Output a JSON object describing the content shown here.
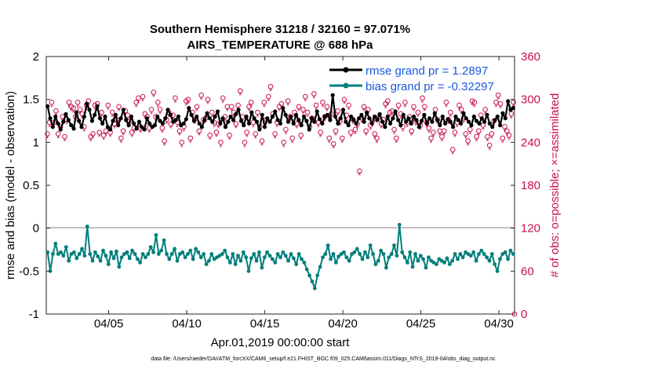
{
  "chart_data": {
    "type": "line",
    "title_line1": "Southern Hemisphere 31218 / 32160 = 97.071%",
    "title_line2": "AIRS_TEMPERATURE @ 688 hPa",
    "xlabel": "Apr.01,2019 00:00:00 start",
    "ylabel_left": "rmse and bias (model - observation)",
    "ylabel_right": "# of obs: o=possible; ×=assimilated",
    "x_tick_labels": [
      "04/05",
      "04/10",
      "04/15",
      "04/20",
      "04/25",
      "04/30"
    ],
    "x_tick_days": [
      5,
      10,
      15,
      20,
      25,
      30
    ],
    "xlim": [
      1,
      31
    ],
    "y_left_ticks": [
      "2",
      "1.5",
      "1",
      "0.5",
      "0",
      "-0.5",
      "-1"
    ],
    "y_left_values": [
      2,
      1.5,
      1,
      0.5,
      0,
      -0.5,
      -1
    ],
    "ylim_left": [
      -1,
      2
    ],
    "y_right_ticks": [
      "360",
      "300",
      "240",
      "180",
      "120",
      "60",
      "0"
    ],
    "y_right_values": [
      360,
      300,
      240,
      180,
      120,
      60,
      0
    ],
    "ylim_right": [
      0,
      360
    ],
    "zero_line": 0,
    "series": [
      {
        "name": "rmse",
        "legend": "rmse grand pr = 1.2897",
        "color": "#000000",
        "values": [
          1.42,
          1.28,
          1.18,
          1.3,
          1.22,
          1.15,
          1.24,
          1.33,
          1.26,
          1.2,
          1.16,
          1.35,
          1.25,
          1.18,
          1.3,
          1.45,
          1.38,
          1.25,
          1.32,
          1.42,
          1.28,
          1.22,
          1.3,
          1.18,
          1.15,
          1.25,
          1.32,
          1.2,
          1.28,
          1.38,
          1.26,
          1.2,
          1.3,
          1.22,
          1.16,
          1.24,
          1.18,
          1.15,
          1.28,
          1.22,
          1.18,
          1.2,
          1.3,
          1.25,
          1.22,
          1.28,
          1.38,
          1.32,
          1.24,
          1.26,
          1.3,
          1.2,
          1.22,
          1.27,
          1.4,
          1.32,
          1.25,
          1.3,
          1.22,
          1.18,
          1.26,
          1.34,
          1.28,
          1.24,
          1.3,
          1.36,
          1.22,
          1.28,
          1.18,
          1.24,
          1.3,
          1.26,
          1.33,
          1.38,
          1.25,
          1.2,
          1.3,
          1.22,
          1.35,
          1.28,
          1.24,
          1.15,
          1.32,
          1.18,
          1.28,
          1.24,
          1.3,
          1.36,
          1.26,
          1.22,
          1.4,
          1.32,
          1.24,
          1.3,
          1.22,
          1.32,
          1.26,
          1.2,
          1.3,
          1.25,
          1.15,
          1.28,
          1.24,
          1.36,
          1.27,
          1.22,
          1.3,
          1.32,
          1.26,
          1.55,
          1.3,
          1.22,
          1.28,
          1.38,
          1.24,
          1.2,
          1.3,
          1.26,
          1.22,
          1.28,
          1.32,
          1.24,
          1.35,
          1.28,
          1.22,
          1.3,
          1.26,
          1.33,
          1.24,
          1.18,
          1.3,
          1.22,
          1.28,
          1.36,
          1.26,
          1.2,
          1.32,
          1.24,
          1.28,
          1.22,
          1.3,
          1.26,
          1.18,
          1.25,
          1.32,
          1.22,
          1.28,
          1.24,
          1.34,
          1.26,
          1.2,
          1.3,
          1.22,
          1.27,
          1.24,
          1.18,
          1.3,
          1.26,
          1.22,
          1.34,
          1.28,
          1.24,
          1.2,
          1.3,
          1.25,
          1.22,
          1.28,
          1.24,
          1.32,
          1.22,
          1.18,
          1.26,
          1.3,
          1.2,
          1.34,
          1.28,
          1.48,
          1.38,
          1.4
        ]
      },
      {
        "name": "bias",
        "legend": "bias grand pr = -0.32297",
        "color": "#007f7b",
        "values": [
          -0.28,
          -0.5,
          -0.3,
          -0.18,
          -0.3,
          -0.28,
          -0.32,
          -0.22,
          -0.38,
          -0.3,
          -0.28,
          -0.35,
          -0.3,
          -0.24,
          -0.32,
          0.02,
          -0.3,
          -0.38,
          -0.28,
          -0.33,
          -0.38,
          -0.26,
          -0.32,
          -0.42,
          -0.28,
          -0.35,
          -0.27,
          -0.45,
          -0.34,
          -0.3,
          -0.28,
          -0.35,
          -0.26,
          -0.3,
          -0.36,
          -0.4,
          -0.3,
          -0.34,
          -0.3,
          -0.22,
          -0.28,
          -0.08,
          -0.3,
          -0.26,
          -0.14,
          -0.3,
          -0.36,
          -0.3,
          -0.24,
          -0.38,
          -0.3,
          -0.28,
          -0.34,
          -0.3,
          -0.26,
          -0.36,
          -0.24,
          -0.28,
          -0.34,
          -0.3,
          -0.42,
          -0.38,
          -0.3,
          -0.36,
          -0.34,
          -0.32,
          -0.3,
          -0.26,
          -0.34,
          -0.4,
          -0.3,
          -0.42,
          -0.32,
          -0.38,
          -0.28,
          -0.34,
          -0.5,
          -0.35,
          -0.3,
          -0.38,
          -0.28,
          -0.46,
          -0.34,
          -0.28,
          -0.32,
          -0.36,
          -0.4,
          -0.3,
          -0.34,
          -0.28,
          -0.32,
          -0.38,
          -0.3,
          -0.35,
          -0.42,
          -0.3,
          -0.36,
          -0.4,
          -0.48,
          -0.55,
          -0.62,
          -0.7,
          -0.55,
          -0.45,
          -0.34,
          -0.3,
          -0.2,
          -0.36,
          -0.3,
          -0.4,
          -0.33,
          -0.3,
          -0.28,
          -0.34,
          -0.38,
          -0.3,
          -0.28,
          -0.24,
          -0.3,
          -0.36,
          -0.28,
          -0.34,
          -0.2,
          -0.3,
          -0.42,
          -0.38,
          -0.26,
          -0.3,
          -0.46,
          -0.34,
          -0.3,
          -0.2,
          -0.32,
          0.04,
          -0.28,
          -0.34,
          -0.4,
          -0.28,
          -0.45,
          -0.3,
          -0.38,
          -0.32,
          -0.36,
          -0.46,
          -0.34,
          -0.38,
          -0.4,
          -0.42,
          -0.36,
          -0.38,
          -0.4,
          -0.35,
          -0.42,
          -0.38,
          -0.3,
          -0.36,
          -0.3,
          -0.34,
          -0.28,
          -0.3,
          -0.32,
          -0.28,
          -0.38,
          -0.3,
          -0.26,
          -0.3,
          -0.34,
          -0.38,
          -0.3,
          -0.42,
          -0.5,
          -0.36,
          -0.3,
          -0.28,
          -0.36,
          -0.26,
          -0.3
        ]
      }
    ],
    "obs_possible": [
      252,
      268,
      296,
      268,
      284,
      252,
      262,
      276,
      248,
      272,
      296,
      290,
      288,
      276,
      296,
      286,
      280,
      262,
      292,
      298,
      248,
      252,
      292,
      294,
      254,
      282,
      250,
      256,
      292,
      254,
      282,
      266,
      272,
      290,
      246,
      256,
      284,
      278,
      270,
      254,
      260,
      296,
      302,
      260,
      304,
      280,
      276,
      260,
      286,
      310,
      276,
      296,
      286,
      260,
      242,
      272,
      282,
      266,
      278,
      302,
      268,
      256,
      240,
      262,
      298,
      300,
      246,
      282,
      272,
      290,
      256,
      306,
      272,
      274,
      300,
      250,
      282,
      268,
      254,
      266,
      240,
      302,
      276,
      290,
      250,
      290,
      282,
      266,
      292,
      312,
      276,
      240,
      254,
      290,
      296,
      268,
      252,
      282,
      262,
      242,
      296,
      272,
      304,
      318,
      280,
      252,
      268,
      290,
      294,
      240,
      258,
      298,
      276,
      246,
      282,
      266,
      290,
      250,
      286,
      304,
      282,
      262,
      274,
      308,
      292,
      268,
      254,
      296,
      276,
      290,
      246,
      280,
      238,
      256,
      284,
      270,
      246,
      300,
      278,
      292,
      254,
      272,
      258,
      266,
      200,
      274,
      290,
      256,
      286,
      264,
      270,
      252,
      246,
      276,
      266,
      272,
      294,
      298,
      282,
      284,
      258,
      246,
      292,
      280,
      262,
      296,
      268,
      276,
      256,
      290,
      270,
      282,
      264,
      302,
      290,
      268,
      260,
      246,
      254,
      286,
      272,
      256,
      248,
      256,
      296,
      272,
      282,
      230,
      254,
      268,
      292,
      286,
      274,
      252,
      242,
      258,
      298,
      296,
      248,
      256,
      278,
      264,
      286,
      248,
      236,
      252,
      270,
      296,
      306,
      294,
      246,
      262,
      256,
      250,
      280,
      296
    ],
    "obs_assimilated": [
      246,
      262,
      290,
      262,
      278,
      246,
      256,
      270,
      242,
      266,
      290,
      284,
      282,
      270,
      290,
      280,
      274,
      256,
      286,
      292,
      242,
      246,
      286,
      288,
      248,
      276,
      244,
      250,
      286,
      248,
      276,
      260,
      266,
      284,
      240,
      250,
      278,
      272,
      264,
      248,
      254,
      290,
      296,
      254,
      298,
      274,
      270,
      254,
      280,
      304,
      270,
      290,
      280,
      254,
      236,
      266,
      276,
      260,
      272,
      296,
      262,
      250,
      234,
      256,
      292,
      294,
      240,
      276,
      266,
      284,
      250,
      300,
      266,
      268,
      294,
      244,
      276,
      262,
      248,
      260,
      234,
      296,
      270,
      284,
      244,
      284,
      276,
      260,
      286,
      306,
      270,
      234,
      248,
      284,
      290,
      262,
      246,
      276,
      256,
      236,
      290,
      266,
      298,
      312,
      274,
      246,
      262,
      284,
      288,
      234,
      252,
      292,
      270,
      240,
      276,
      260,
      284,
      244,
      280,
      298,
      276,
      256,
      268,
      302,
      286,
      262,
      248,
      290,
      270,
      284,
      240,
      274,
      232,
      250,
      278,
      264,
      240,
      294,
      272,
      286,
      248,
      266,
      252,
      260,
      194,
      268,
      284,
      250,
      280,
      258,
      264,
      246,
      240,
      270,
      260,
      266,
      288,
      292,
      276,
      278,
      252,
      240,
      286,
      274,
      256,
      290,
      262,
      270,
      250,
      284,
      264,
      276,
      258,
      296,
      284,
      262,
      254,
      240,
      248,
      280,
      266,
      250,
      242,
      250,
      290,
      266,
      276,
      224,
      248,
      262,
      286,
      280,
      268,
      246,
      236,
      252,
      292,
      290,
      242,
      250,
      272,
      258,
      280,
      242,
      230,
      246,
      264,
      290,
      300,
      288,
      240,
      256,
      250,
      244,
      274,
      290
    ],
    "colors": {
      "rmse": "#000000",
      "bias": "#007f7b",
      "obs": "#c8104f",
      "zero_line": "#b8aaaa",
      "legend_text": "#1a5adf"
    },
    "footer": "data file: /Users/raeder/DAI/ATM_forcXX/CAM6_setup/f.e21.FHIST_BGC.f09_025.CAM6assim.011/Diags_NTrS_2019-04/obs_diag_output.nc"
  }
}
